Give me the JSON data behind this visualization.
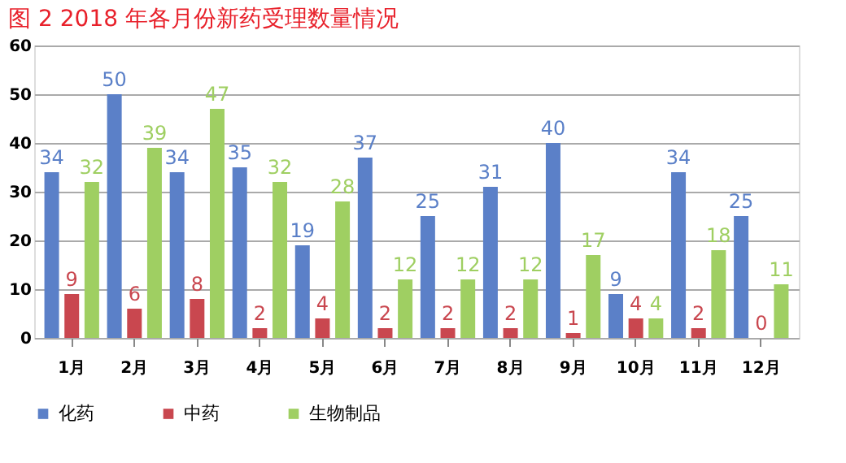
{
  "chart_data": {
    "type": "bar",
    "title": "图 2 2018 年各月份新药受理数量情况",
    "categories": [
      "1月",
      "2月",
      "3月",
      "4月",
      "5月",
      "6月",
      "7月",
      "8月",
      "9月",
      "10月",
      "11月",
      "12月"
    ],
    "series": [
      {
        "name": "化药",
        "color": "#5b80c8",
        "values": [
          34,
          50,
          34,
          35,
          19,
          37,
          25,
          31,
          40,
          9,
          34,
          25
        ]
      },
      {
        "name": "中药",
        "color": "#c9474f",
        "values": [
          9,
          6,
          8,
          2,
          4,
          2,
          2,
          2,
          1,
          4,
          2,
          0
        ]
      },
      {
        "name": "生物制品",
        "color": "#9fcf62",
        "values": [
          32,
          39,
          47,
          32,
          28,
          12,
          12,
          12,
          17,
          4,
          18,
          11
        ]
      }
    ],
    "ylim": [
      0,
      60
    ],
    "yticks": [
      0,
      10,
      20,
      30,
      40,
      50,
      60
    ],
    "grid": "y",
    "legend": "bottom",
    "data_labels": true
  }
}
